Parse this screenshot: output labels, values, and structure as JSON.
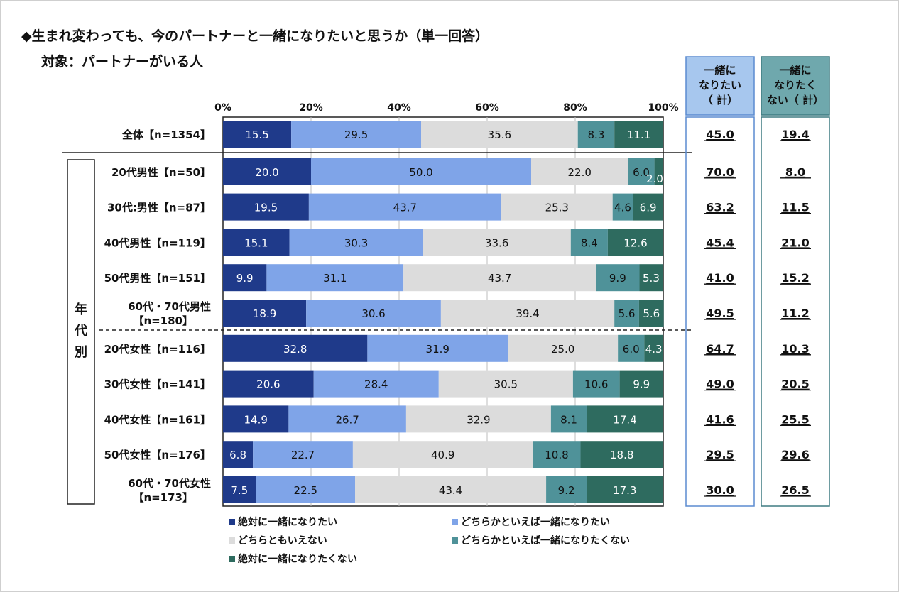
{
  "title": "◆生まれ変わっても、今のパートナーと一緒になりたいと思うか（単一回答）",
  "subtitle": "対象：パートナーがいる人",
  "colors": [
    "#1f3a8a",
    "#7fa4e8",
    "#dcdcdc",
    "#4f9299",
    "#2e6b5f"
  ],
  "chart_data": {
    "type": "bar",
    "orientation": "horizontal",
    "stacked": true,
    "xlim": [
      0,
      100
    ],
    "x_ticks": [
      "0%",
      "20%",
      "40%",
      "60%",
      "80%",
      "100%"
    ],
    "categories": [
      "全体【n=1354】",
      "20代男性【n=50】",
      "30代:男性【n=87】",
      "40代男性【n=119】",
      "50代男性【n=151】",
      "60代・70代男性\n【n=180】",
      "20代女性【n=116】",
      "30代女性【n=141】",
      "40代女性【n=161】",
      "50代女性【n=176】",
      "60代・70代女性\n【n=173】"
    ],
    "group_label": "年代別",
    "series": [
      {
        "name": "絶対に一緒になりたい",
        "values": [
          15.5,
          20.0,
          19.5,
          15.1,
          9.9,
          18.9,
          32.8,
          20.6,
          14.9,
          6.8,
          7.5
        ]
      },
      {
        "name": "どちらかといえば一緒になりたい",
        "values": [
          29.5,
          50.0,
          43.7,
          30.3,
          31.1,
          30.6,
          31.9,
          28.4,
          26.7,
          22.7,
          22.5
        ]
      },
      {
        "name": "どちらともいえない",
        "values": [
          35.6,
          22.0,
          25.3,
          33.6,
          43.7,
          39.4,
          25.0,
          30.5,
          32.9,
          40.9,
          43.4
        ]
      },
      {
        "name": "どちらかといえば一緒になりたくない",
        "values": [
          8.3,
          6.0,
          4.6,
          8.4,
          9.9,
          5.6,
          6.0,
          10.6,
          8.1,
          10.8,
          9.2
        ]
      },
      {
        "name": "絶対に一緒になりたくない",
        "values": [
          11.1,
          2.0,
          6.9,
          12.6,
          5.3,
          5.6,
          4.3,
          9.9,
          17.4,
          18.8,
          17.3
        ]
      }
    ],
    "summary_columns": [
      {
        "header": [
          "一緒に",
          "なりたい",
          "（ 計）"
        ],
        "values": [
          "45.0",
          "70.0",
          "63.2",
          "45.4",
          "41.0",
          "49.5",
          "64.7",
          "49.0",
          "41.6",
          "29.5",
          "30.0"
        ]
      },
      {
        "header": [
          "一緒に",
          "なりたく",
          "ない（ 計）"
        ],
        "values": [
          "19.4",
          "8.0",
          "11.5",
          "21.0",
          "15.2",
          "11.2",
          "10.3",
          "20.5",
          "25.5",
          "29.6",
          "26.5"
        ]
      }
    ],
    "legend_position": "bottom"
  }
}
